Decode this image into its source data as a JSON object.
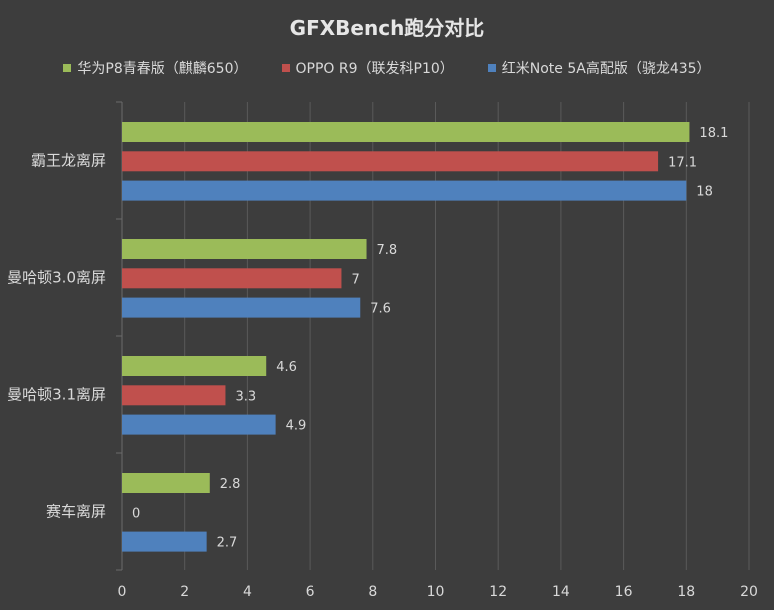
{
  "chart_data": {
    "type": "bar",
    "orientation": "horizontal",
    "title": "GFXBench跑分对比",
    "categories": [
      "霸王龙离屏",
      "曼哈顿3.0离屏",
      "曼哈顿3.1离屏",
      "赛车离屏"
    ],
    "series": [
      {
        "name": "华为P8青春版（麒麟650）",
        "color": "#9bbb59",
        "values": [
          18.1,
          7.8,
          4.6,
          2.8
        ]
      },
      {
        "name": "OPPO R9（联发科P10）",
        "color": "#c0504d",
        "values": [
          17.1,
          7,
          3.3,
          0
        ]
      },
      {
        "name": "红米Note 5A高配版（骁龙435）",
        "color": "#4f81bd",
        "values": [
          18,
          7.6,
          4.9,
          2.7
        ]
      }
    ],
    "xlim": [
      0,
      20
    ],
    "xticks": [
      0,
      2,
      4,
      6,
      8,
      10,
      12,
      14,
      16,
      18,
      20
    ],
    "grid": true,
    "legend_position": "top",
    "value_labels": true
  }
}
